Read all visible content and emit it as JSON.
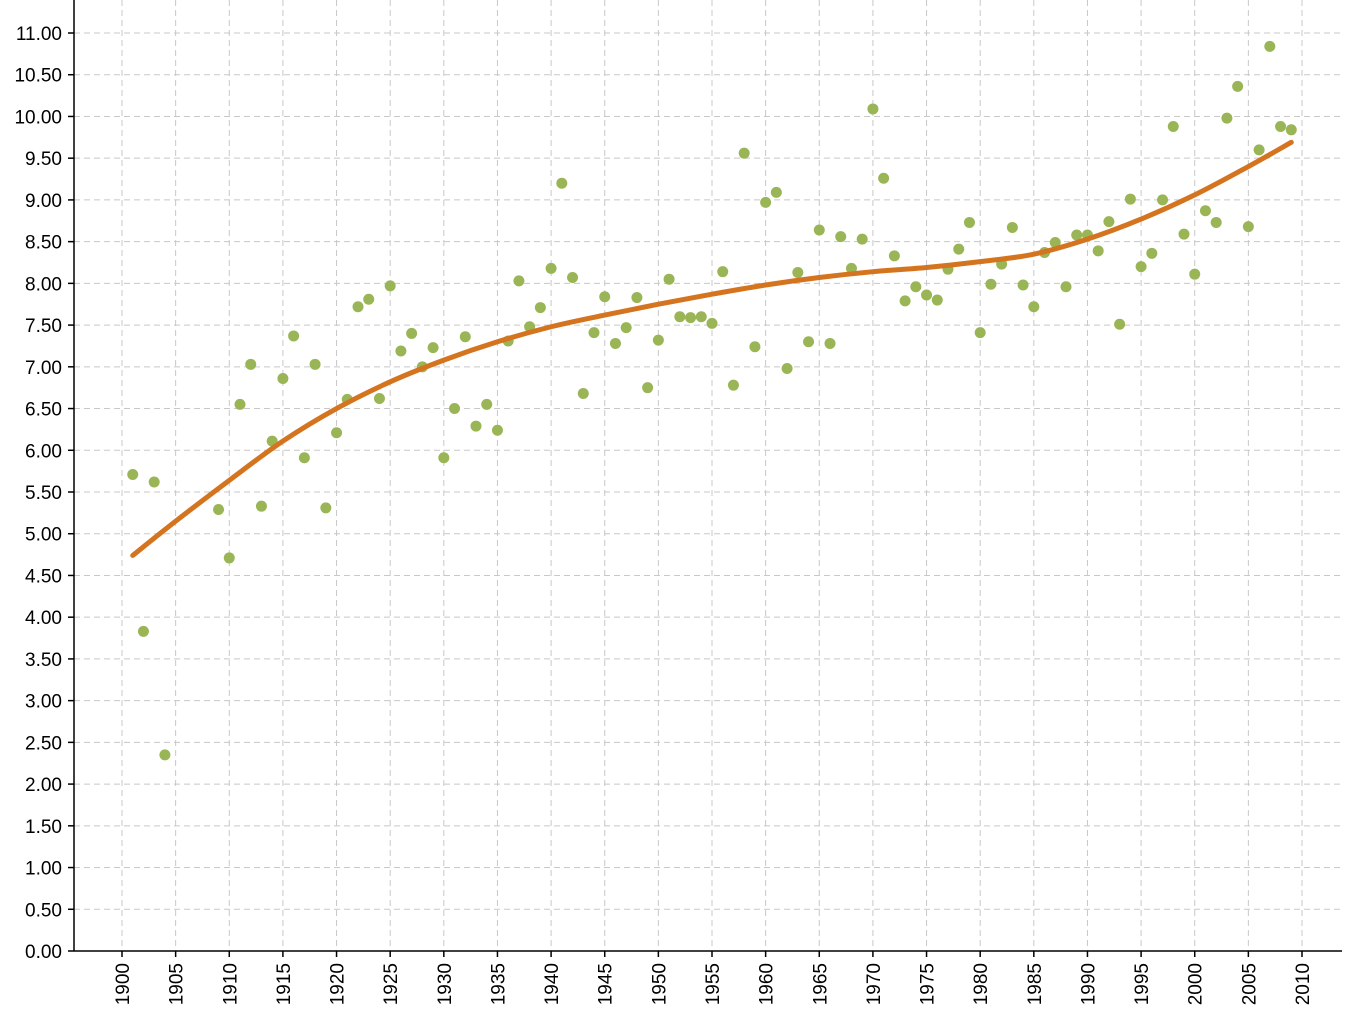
{
  "chart_data": {
    "type": "scatter",
    "title": "",
    "xlabel": "",
    "ylabel": "",
    "xlim": [
      1896,
      2013
    ],
    "ylim": [
      0,
      11.4
    ],
    "x_ticks": [
      1900,
      1905,
      1910,
      1915,
      1920,
      1925,
      1930,
      1935,
      1940,
      1945,
      1950,
      1955,
      1960,
      1965,
      1970,
      1975,
      1980,
      1985,
      1990,
      1995,
      2000,
      2005,
      2010
    ],
    "y_ticks": [
      "0.00",
      "0.50",
      "1.00",
      "1.50",
      "2.00",
      "2.50",
      "3.00",
      "3.50",
      "4.00",
      "4.50",
      "5.00",
      "5.50",
      "6.00",
      "6.50",
      "7.00",
      "7.50",
      "8.00",
      "8.50",
      "9.00",
      "9.50",
      "10.00",
      "10.50",
      "11.00"
    ],
    "grid": true,
    "legend": "none",
    "colors": {
      "points": "#9ab556",
      "trend": "#d4741f"
    },
    "series": [
      {
        "type": "scatter",
        "x": [
          1901,
          1902,
          1903,
          1904,
          1909,
          1910,
          1911,
          1912,
          1913,
          1914,
          1915,
          1916,
          1917,
          1918,
          1919,
          1920,
          1921,
          1922,
          1923,
          1924,
          1925,
          1926,
          1927,
          1928,
          1929,
          1930,
          1931,
          1932,
          1933,
          1934,
          1935,
          1936,
          1937,
          1938,
          1939,
          1940,
          1941,
          1942,
          1943,
          1944,
          1945,
          1946,
          1947,
          1948,
          1949,
          1950,
          1951,
          1952,
          1953,
          1954,
          1955,
          1956,
          1957,
          1958,
          1959,
          1960,
          1961,
          1962,
          1963,
          1964,
          1965,
          1966,
          1967,
          1968,
          1969,
          1970,
          1971,
          1972,
          1973,
          1974,
          1975,
          1976,
          1977,
          1978,
          1979,
          1980,
          1981,
          1982,
          1983,
          1984,
          1985,
          1986,
          1987,
          1988,
          1989,
          1990,
          1991,
          1992,
          1993,
          1994,
          1995,
          1996,
          1997,
          1998,
          1999,
          2000,
          2001,
          2002,
          2003,
          2004,
          2005,
          2006,
          2007,
          2008,
          2009
        ],
        "y": [
          5.71,
          3.83,
          5.62,
          2.35,
          5.29,
          4.71,
          6.55,
          7.03,
          5.33,
          6.11,
          6.86,
          7.37,
          5.91,
          7.03,
          5.31,
          6.21,
          6.61,
          7.72,
          7.81,
          6.62,
          7.97,
          7.19,
          7.4,
          7.0,
          7.23,
          5.91,
          6.5,
          7.36,
          6.29,
          6.55,
          6.24,
          7.31,
          8.03,
          7.48,
          7.71,
          8.18,
          9.2,
          8.07,
          6.68,
          7.41,
          7.84,
          7.28,
          7.47,
          7.83,
          6.75,
          7.32,
          8.05,
          7.6,
          7.59,
          7.6,
          7.52,
          8.14,
          6.78,
          9.56,
          7.24,
          8.97,
          9.09,
          6.98,
          8.13,
          7.3,
          8.64,
          7.28,
          8.56,
          8.18,
          8.53,
          10.09,
          9.26,
          8.33,
          7.79,
          7.96,
          7.86,
          7.8,
          8.17,
          8.41,
          8.73,
          7.41,
          7.99,
          8.23,
          8.67,
          7.98,
          7.72,
          8.37,
          8.49,
          7.96,
          8.58,
          8.58,
          8.39,
          8.74,
          7.51,
          9.01,
          8.2,
          8.36,
          9.0,
          9.88,
          8.59,
          8.11,
          8.87,
          8.73,
          9.98,
          10.36,
          8.68,
          9.6,
          10.84,
          9.88,
          9.84
        ]
      },
      {
        "type": "line",
        "x": [
          1901,
          1905,
          1910,
          1915,
          1920,
          1925,
          1930,
          1935,
          1940,
          1945,
          1950,
          1955,
          1960,
          1965,
          1970,
          1975,
          1980,
          1985,
          1990,
          1995,
          2000,
          2005,
          2009
        ],
        "y": [
          4.74,
          5.15,
          5.64,
          6.11,
          6.5,
          6.82,
          7.08,
          7.3,
          7.48,
          7.62,
          7.75,
          7.87,
          7.98,
          8.07,
          8.14,
          8.19,
          8.26,
          8.35,
          8.53,
          8.77,
          9.06,
          9.4,
          9.69
        ]
      }
    ]
  }
}
